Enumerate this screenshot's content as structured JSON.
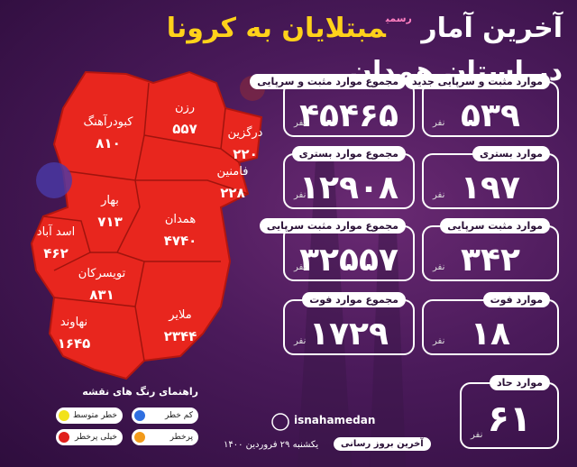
{
  "header": {
    "title_start": "آخرین آمار",
    "title_note": "رسمی",
    "title_highlight": "مبتلایان به کرونا",
    "title_end": "در استان همدان"
  },
  "daily": [
    {
      "label": "موارد مثبت و سرپایی جدید",
      "value": "۵۳۹",
      "unit": "نفر"
    },
    {
      "label": "موارد بستری",
      "value": "۱۹۷",
      "unit": "نفر"
    },
    {
      "label": "موارد مثبت سرپایی",
      "value": "۳۴۲",
      "unit": "نفر"
    },
    {
      "label": "موارد فوت",
      "value": "۱۸",
      "unit": "نفر"
    }
  ],
  "totals": [
    {
      "label": "مجموع موارد مثبت و سرپایی",
      "value": "۴۵۴۶۵",
      "unit": "نفر"
    },
    {
      "label": "مجموع موارد بستری",
      "value": "۱۲۹۰۸",
      "unit": "نفر"
    },
    {
      "label": "مجموع موارد مثبت سرپایی",
      "value": "۳۲۵۵۷",
      "unit": "نفر"
    },
    {
      "label": "مجموع موارد فوت",
      "value": "۱۷۲۹",
      "unit": "نفر"
    }
  ],
  "acute": {
    "label": "موارد حاد",
    "value": "۶۱",
    "unit": "نفر"
  },
  "map": {
    "regions": [
      {
        "name": "کبودرآهنگ",
        "value": "۸۱۰"
      },
      {
        "name": "رزن",
        "value": "۵۵۷"
      },
      {
        "name": "درگزین",
        "value": "۲۲۰"
      },
      {
        "name": "فامنین",
        "value": "۲۲۸"
      },
      {
        "name": "بهار",
        "value": "۷۱۳"
      },
      {
        "name": "همدان",
        "value": "۴۷۴۰"
      },
      {
        "name": "اسد آباد",
        "value": "۴۶۲"
      },
      {
        "name": "تویسرکان",
        "value": "۸۳۱"
      },
      {
        "name": "نهاوند",
        "value": "۱۶۴۵"
      },
      {
        "name": "ملایر",
        "value": "۲۳۴۴"
      }
    ]
  },
  "legend": {
    "title": "راهنمای رنگ های نقشه",
    "items": [
      {
        "label": "کم خطر",
        "color": "#2f6fe0"
      },
      {
        "label": "خطر متوسط",
        "color": "#f2e21a"
      },
      {
        "label": "پرخطر",
        "color": "#f29a1a"
      },
      {
        "label": "خیلی پرخطر",
        "color": "#e0201c"
      }
    ]
  },
  "footer": {
    "handle": "isnahamedan",
    "update_label": "آخرین بروز رسانی",
    "date": "یکشنبه ۲۹ فروردین ۱۴۰۰"
  }
}
